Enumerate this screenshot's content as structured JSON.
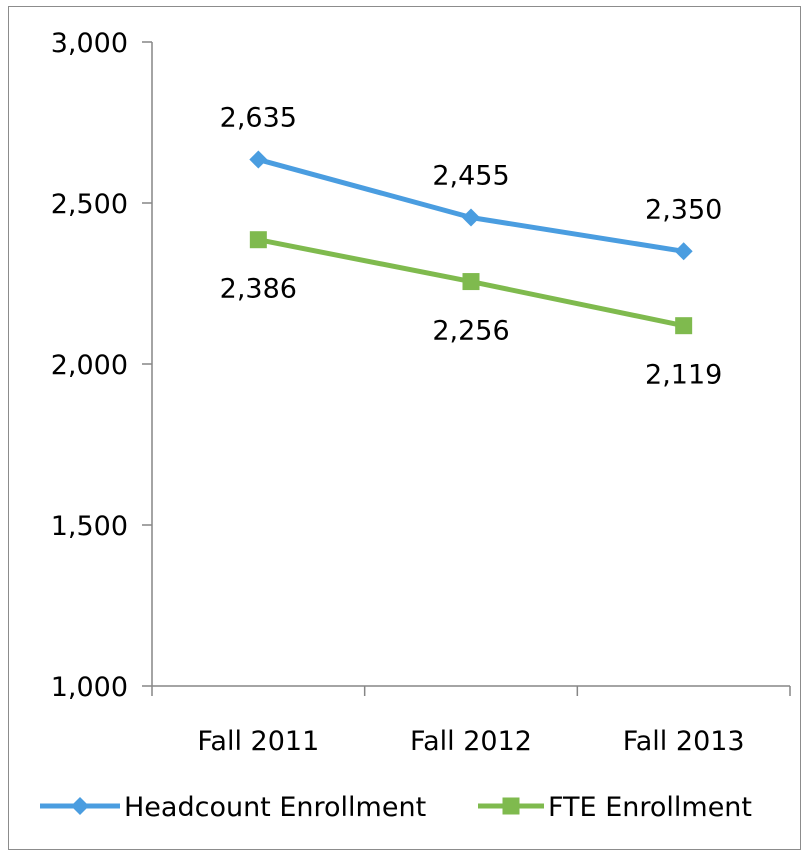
{
  "chart_data": {
    "type": "line",
    "categories": [
      "Fall 2011",
      "Fall 2012",
      "Fall 2013"
    ],
    "ylim": [
      1000,
      3000
    ],
    "yticks": [
      1000,
      1500,
      2000,
      2500,
      3000
    ],
    "ytick_labels": [
      "1,000",
      "1,500",
      "2,000",
      "2,500",
      "3,000"
    ],
    "grid": false,
    "legend_position": "bottom",
    "series": [
      {
        "name": "Headcount Enrollment",
        "values": [
          2635,
          2455,
          2350
        ],
        "labels": [
          "2,635",
          "2,455",
          "2,350"
        ],
        "color": "#4a9de0",
        "marker": "diamond",
        "label_position": "above"
      },
      {
        "name": "FTE Enrollment",
        "values": [
          2386,
          2256,
          2119
        ],
        "labels": [
          "2,386",
          "2,256",
          "2,119"
        ],
        "color": "#7fba4e",
        "marker": "square",
        "label_position": "below"
      }
    ]
  }
}
